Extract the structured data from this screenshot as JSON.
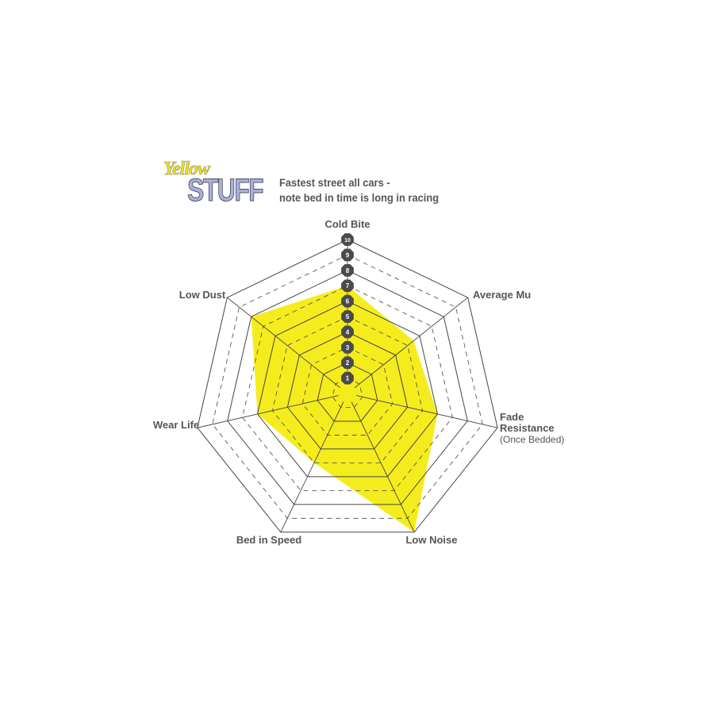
{
  "logo": {
    "line1": "Yellow",
    "line2": "STUFF",
    "colors": {
      "yellow": "#f2e600",
      "stuff": "#a8b0e0"
    }
  },
  "subtitle": {
    "line1": "Fastest street all cars -",
    "line2": "note bed in time is long in racing"
  },
  "chart_data": {
    "type": "radar",
    "axes": [
      "Cold Bite",
      "Average Mu",
      "Fade Resistance",
      "Low Noise",
      "Bed in Speed",
      "Wear Life",
      "Low Dust"
    ],
    "axis_sublabels": {
      "Fade Resistance": "(Once Bedded)"
    },
    "values": [
      7,
      5.5,
      6,
      10,
      5,
      6,
      8
    ],
    "range": [
      0,
      10
    ],
    "ticks": [
      "1",
      "2",
      "3",
      "4",
      "5",
      "6",
      "7",
      "8",
      "9",
      "10"
    ],
    "fill_color": "#f5ec1e",
    "grid": true
  }
}
